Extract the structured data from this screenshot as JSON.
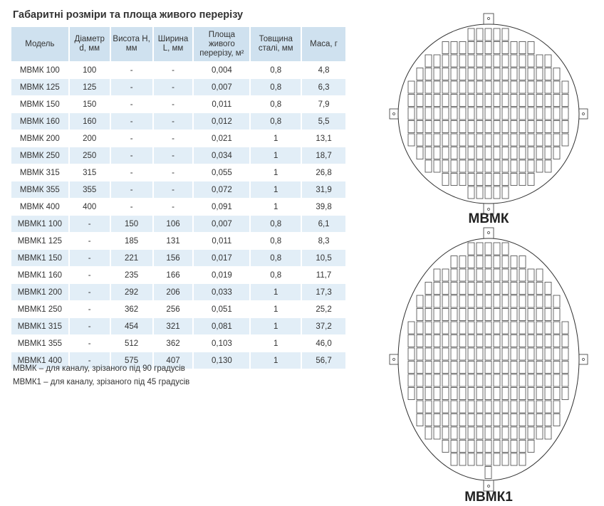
{
  "title": "Габаритні розміри та площа живого перерізу",
  "headers": [
    "Модель",
    "Діаметр d, мм",
    "Висота H, мм",
    "Ширина L, мм",
    "Площа живого перерізу, м²",
    "Товщина сталі, мм",
    "Маса, г"
  ],
  "rows": [
    [
      "МВМК 100",
      "100",
      "-",
      "-",
      "0,004",
      "0,8",
      "4,8"
    ],
    [
      "МВМК 125",
      "125",
      "-",
      "-",
      "0,007",
      "0,8",
      "6,3"
    ],
    [
      "МВМК 150",
      "150",
      "-",
      "-",
      "0,011",
      "0,8",
      "7,9"
    ],
    [
      "МВМК 160",
      "160",
      "-",
      "-",
      "0,012",
      "0,8",
      "5,5"
    ],
    [
      "МВМК 200",
      "200",
      "-",
      "-",
      "0,021",
      "1",
      "13,1"
    ],
    [
      "МВМК 250",
      "250",
      "-",
      "-",
      "0,034",
      "1",
      "18,7"
    ],
    [
      "МВМК 315",
      "315",
      "-",
      "-",
      "0,055",
      "1",
      "26,8"
    ],
    [
      "МВМК 355",
      "355",
      "-",
      "-",
      "0,072",
      "1",
      "31,9"
    ],
    [
      "МВМК 400",
      "400",
      "-",
      "-",
      "0,091",
      "1",
      "39,8"
    ],
    [
      "МВМК1 100",
      "-",
      "150",
      "106",
      "0,007",
      "0,8",
      "6,1"
    ],
    [
      "МВМК1 125",
      "-",
      "185",
      "131",
      "0,011",
      "0,8",
      "8,3"
    ],
    [
      "МВМК1 150",
      "-",
      "221",
      "156",
      "0,017",
      "0,8",
      "10,5"
    ],
    [
      "МВМК1 160",
      "-",
      "235",
      "166",
      "0,019",
      "0,8",
      "11,7"
    ],
    [
      "МВМК1 200",
      "-",
      "292",
      "206",
      "0,033",
      "1",
      "17,3"
    ],
    [
      "МВМК1 250",
      "-",
      "362",
      "256",
      "0,051",
      "1",
      "25,2"
    ],
    [
      "МВМК1 315",
      "-",
      "454",
      "321",
      "0,081",
      "1",
      "37,2"
    ],
    [
      "МВМК1 355",
      "-",
      "512",
      "362",
      "0,103",
      "1",
      "46,0"
    ],
    [
      "МВМК1 400",
      "-",
      "575",
      "407",
      "0,130",
      "1",
      "56,7"
    ]
  ],
  "notes": [
    "МВМК – для каналу, зрізаного під 90 градусів",
    "МВМК1 – для каналу, зрізаного під 45 градусів"
  ],
  "figures": {
    "round_label": "МВМК",
    "oval_label": "МВМК1"
  }
}
